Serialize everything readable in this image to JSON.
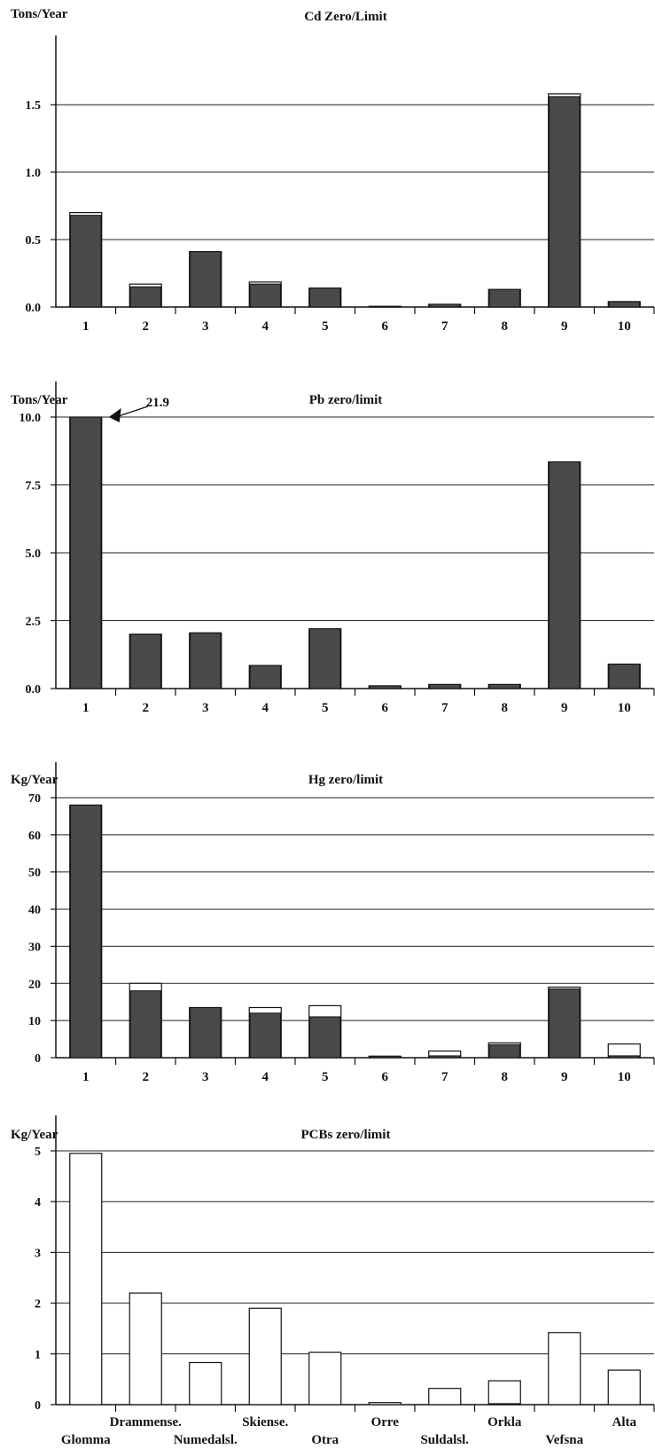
{
  "colors": {
    "upper": "#4a4a4a",
    "lower": "#ffffff",
    "stroke": "#111111",
    "grid": "#222222"
  },
  "chart_data": [
    {
      "type": "bar",
      "title": "Cd  Zero/Limit",
      "ylabel": "Tons/Year",
      "ylim": [
        0,
        1.75
      ],
      "yticks": [
        "0.0",
        "0.5",
        "1.0",
        "1.5"
      ],
      "ytick_values": [
        0,
        0.5,
        1.0,
        1.5
      ],
      "categories": [
        "1",
        "2",
        "3",
        "4",
        "5",
        "6",
        "7",
        "8",
        "9",
        "10"
      ],
      "series": [
        {
          "name": "",
          "role": "lower",
          "values": [
            0.68,
            0.15,
            0.41,
            0.17,
            0.14,
            0.005,
            0.02,
            0.13,
            1.56,
            0.04
          ]
        },
        {
          "name": "",
          "role": "upper",
          "values": [
            0.7,
            0.17,
            0.41,
            0.185,
            0.14,
            0.005,
            0.02,
            0.13,
            1.58,
            0.04
          ]
        }
      ],
      "grid": true
    },
    {
      "type": "bar",
      "title": "Pb  zero/limit",
      "ylabel": "Tons/Year",
      "ylim": [
        0,
        10
      ],
      "yticks": [
        "0.0",
        "2.5",
        "5.0",
        "7.5",
        "10.0"
      ],
      "ytick_values": [
        0,
        2.5,
        5.0,
        7.5,
        10.0
      ],
      "categories": [
        "1",
        "2",
        "3",
        "4",
        "5",
        "6",
        "7",
        "8",
        "9",
        "10"
      ],
      "series": [
        {
          "name": "",
          "role": "lower",
          "values": [
            10.0,
            2.0,
            2.05,
            0.85,
            2.2,
            0.1,
            0.15,
            0.15,
            8.35,
            0.9
          ]
        },
        {
          "name": "",
          "role": "upper",
          "values": [
            10.0,
            2.0,
            2.05,
            0.85,
            2.2,
            0.1,
            0.15,
            0.15,
            8.35,
            0.9
          ]
        }
      ],
      "annotations": [
        {
          "text": "21.9",
          "category": "1"
        }
      ],
      "grid": true
    },
    {
      "type": "bar",
      "title": "Hg  zero/limit",
      "ylabel": "Kg/Year",
      "ylim": [
        0,
        70
      ],
      "yticks": [
        "0",
        "10",
        "20",
        "30",
        "40",
        "50",
        "60",
        "70"
      ],
      "ytick_values": [
        0,
        10,
        20,
        30,
        40,
        50,
        60,
        70
      ],
      "categories": [
        "1",
        "2",
        "3",
        "4",
        "5",
        "6",
        "7",
        "8",
        "9",
        "10"
      ],
      "series": [
        {
          "name": "",
          "role": "lower",
          "values": [
            68,
            18,
            13.5,
            12,
            11,
            0.4,
            0.5,
            3.5,
            18.5,
            0.5
          ]
        },
        {
          "name": "",
          "role": "upper",
          "values": [
            68,
            20,
            13.5,
            13.5,
            14,
            0.4,
            1.8,
            4,
            19,
            3.7
          ]
        }
      ],
      "grid": true
    },
    {
      "type": "bar",
      "title": "PCBs  zero/limit",
      "ylabel": "Kg/Year",
      "ylim": [
        0,
        5
      ],
      "yticks": [
        "0",
        "1",
        "2",
        "3",
        "4",
        "5"
      ],
      "ytick_values": [
        0,
        1,
        2,
        3,
        4,
        5
      ],
      "categories": [
        "Glomma",
        "Drammense.",
        "Numedalsl.",
        "Skiense.",
        "Otra",
        "Orre",
        "Suldalsl.",
        "Orkla",
        "Vefsna",
        "Alta"
      ],
      "series": [
        {
          "name": "",
          "role": "lower",
          "values": [
            0,
            0,
            0,
            0,
            0,
            0,
            0,
            0.02,
            0,
            0
          ]
        },
        {
          "name": "",
          "role": "upper",
          "values": [
            4.95,
            2.2,
            0.83,
            1.9,
            1.03,
            0.04,
            0.32,
            0.47,
            1.42,
            0.68
          ]
        }
      ],
      "grid": true
    }
  ]
}
